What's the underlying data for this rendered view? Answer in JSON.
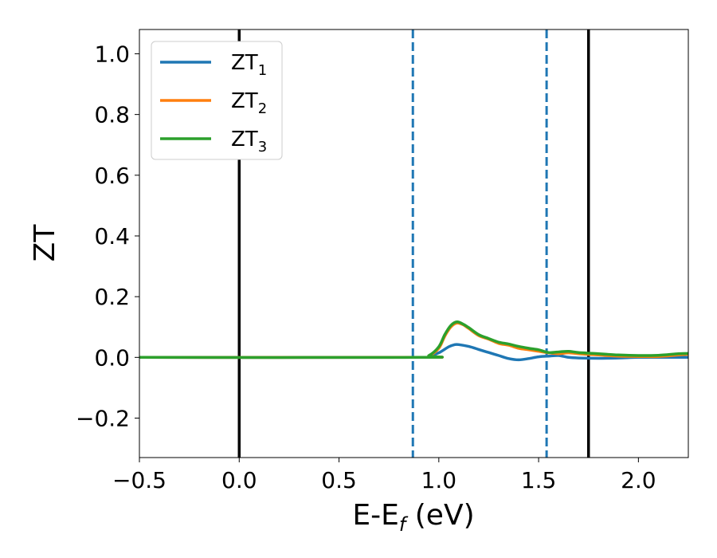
{
  "chart_data": {
    "type": "line",
    "xlabel_main": "E-E",
    "xlabel_sub": "f",
    "xlabel_unit": " (eV)",
    "ylabel": "ZT",
    "xlim": [
      -0.5,
      2.25
    ],
    "ylim": [
      -0.33,
      1.08
    ],
    "xticks": [
      -0.5,
      0.0,
      0.5,
      1.0,
      1.5,
      2.0
    ],
    "xtick_labels": [
      "−0.5",
      "0.0",
      "0.5",
      "1.0",
      "1.5",
      "2.0"
    ],
    "yticks": [
      -0.2,
      0.0,
      0.2,
      0.4,
      0.6,
      0.8,
      1.0
    ],
    "ytick_labels": [
      "−0.2",
      "0.0",
      "0.2",
      "0.4",
      "0.6",
      "0.8",
      "1.0"
    ],
    "grid": false,
    "legend_placement": "top-left",
    "vlines": [
      {
        "x": 0.0,
        "style": "solid",
        "color": "#000000"
      },
      {
        "x": 1.75,
        "style": "solid",
        "color": "#000000"
      },
      {
        "x": 0.87,
        "style": "dashed",
        "color": "#1f77b4"
      },
      {
        "x": 1.54,
        "style": "dashed",
        "color": "#1f77b4"
      }
    ],
    "series": [
      {
        "name": "ZT",
        "name_sub": "1",
        "color": "#1f77b4",
        "x": [
          -0.5,
          0.9,
          0.95,
          1.0,
          1.05,
          1.08,
          1.1,
          1.15,
          1.2,
          1.25,
          1.3,
          1.35,
          1.4,
          1.45,
          1.5,
          1.55,
          1.6,
          1.65,
          1.7,
          1.8,
          1.9,
          2.0,
          2.1,
          2.2,
          2.25
        ],
        "y": [
          0.0,
          0.0,
          0.003,
          0.015,
          0.035,
          0.042,
          0.042,
          0.036,
          0.026,
          0.016,
          0.006,
          -0.004,
          -0.008,
          -0.004,
          0.002,
          0.004,
          0.006,
          0.0,
          -0.002,
          -0.003,
          -0.002,
          0.0,
          0.0,
          0.0,
          0.0
        ]
      },
      {
        "name": "ZT",
        "name_sub": "2",
        "color": "#ff7f0e",
        "x": [
          -0.5,
          0.9,
          0.95,
          1.0,
          1.03,
          1.06,
          1.09,
          1.12,
          1.15,
          1.2,
          1.25,
          1.3,
          1.35,
          1.4,
          1.45,
          1.5,
          1.55,
          1.6,
          1.65,
          1.7,
          1.8,
          1.9,
          2.0,
          2.1,
          2.2,
          2.25
        ],
        "y": [
          0.0,
          0.0,
          0.005,
          0.03,
          0.07,
          0.1,
          0.113,
          0.108,
          0.095,
          0.072,
          0.06,
          0.046,
          0.04,
          0.03,
          0.025,
          0.02,
          0.015,
          0.012,
          0.015,
          0.012,
          0.008,
          0.004,
          0.003,
          0.003,
          0.008,
          0.01
        ]
      },
      {
        "name": "ZT",
        "name_sub": "3",
        "color": "#2ca02c",
        "x": [
          -0.5,
          0.9,
          0.95,
          1.0,
          1.03,
          1.06,
          1.09,
          1.12,
          1.15,
          1.2,
          1.25,
          1.3,
          1.35,
          1.4,
          1.45,
          1.5,
          1.55,
          1.6,
          1.65,
          1.7,
          1.8,
          1.9,
          2.0,
          2.1,
          2.2,
          2.25
        ],
        "y": [
          0.0,
          0.0,
          0.006,
          0.035,
          0.075,
          0.105,
          0.117,
          0.11,
          0.098,
          0.075,
          0.062,
          0.05,
          0.044,
          0.036,
          0.03,
          0.025,
          0.016,
          0.018,
          0.02,
          0.016,
          0.012,
          0.008,
          0.006,
          0.007,
          0.012,
          0.013
        ]
      }
    ]
  }
}
